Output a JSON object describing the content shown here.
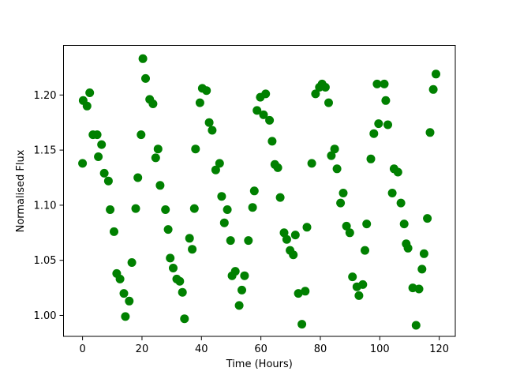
{
  "figure": {
    "background": "#ffffff",
    "border_color": "#000000",
    "text_color": "#000000"
  },
  "chart_data": {
    "type": "scatter",
    "title": "",
    "xlabel": "Time (Hours)",
    "ylabel": "Normalised Flux",
    "xlim": [
      -6.4,
      125.4
    ],
    "ylim": [
      0.981,
      1.245
    ],
    "grid": false,
    "legend": false,
    "xticks": {
      "values": [
        0,
        20,
        40,
        60,
        80,
        100,
        120
      ],
      "labels": [
        "0",
        "20",
        "40",
        "60",
        "80",
        "100",
        "120"
      ]
    },
    "yticks": {
      "values": [
        1.0,
        1.05,
        1.1,
        1.15,
        1.2
      ],
      "labels": [
        "1.00",
        "1.05",
        "1.10",
        "1.15",
        "1.20"
      ]
    },
    "marker": {
      "shape": "circle",
      "color": "#008000",
      "radius_px": 5.5
    },
    "points": [
      [
        0.0,
        1.138
      ],
      [
        0.2,
        1.195
      ],
      [
        1.5,
        1.19
      ],
      [
        2.4,
        1.202
      ],
      [
        3.5,
        1.164
      ],
      [
        4.9,
        1.164
      ],
      [
        5.3,
        1.144
      ],
      [
        6.4,
        1.155
      ],
      [
        7.3,
        1.129
      ],
      [
        8.7,
        1.122
      ],
      [
        9.3,
        1.096
      ],
      [
        10.6,
        1.076
      ],
      [
        11.5,
        1.038
      ],
      [
        12.6,
        1.033
      ],
      [
        13.9,
        1.02
      ],
      [
        14.4,
        0.999
      ],
      [
        15.7,
        1.013
      ],
      [
        16.6,
        1.048
      ],
      [
        17.9,
        1.097
      ],
      [
        18.6,
        1.125
      ],
      [
        19.7,
        1.164
      ],
      [
        20.3,
        1.233
      ],
      [
        21.2,
        1.215
      ],
      [
        22.6,
        1.196
      ],
      [
        23.7,
        1.192
      ],
      [
        24.6,
        1.143
      ],
      [
        25.4,
        1.151
      ],
      [
        26.1,
        1.118
      ],
      [
        27.9,
        1.096
      ],
      [
        28.8,
        1.078
      ],
      [
        29.5,
        1.052
      ],
      [
        30.5,
        1.043
      ],
      [
        31.7,
        1.033
      ],
      [
        32.7,
        1.031
      ],
      [
        33.6,
        1.021
      ],
      [
        34.3,
        0.997
      ],
      [
        36.0,
        1.07
      ],
      [
        36.9,
        1.06
      ],
      [
        37.6,
        1.097
      ],
      [
        38.0,
        1.151
      ],
      [
        39.5,
        1.193
      ],
      [
        40.3,
        1.206
      ],
      [
        41.7,
        1.204
      ],
      [
        42.6,
        1.175
      ],
      [
        43.6,
        1.168
      ],
      [
        44.8,
        1.132
      ],
      [
        46.1,
        1.138
      ],
      [
        46.8,
        1.108
      ],
      [
        47.7,
        1.084
      ],
      [
        48.7,
        1.096
      ],
      [
        49.8,
        1.068
      ],
      [
        50.3,
        1.036
      ],
      [
        51.4,
        1.04
      ],
      [
        52.7,
        1.009
      ],
      [
        53.6,
        1.023
      ],
      [
        54.5,
        1.036
      ],
      [
        55.8,
        1.068
      ],
      [
        57.2,
        1.098
      ],
      [
        57.8,
        1.113
      ],
      [
        58.7,
        1.186
      ],
      [
        59.8,
        1.198
      ],
      [
        60.9,
        1.182
      ],
      [
        61.6,
        1.201
      ],
      [
        62.9,
        1.177
      ],
      [
        63.8,
        1.158
      ],
      [
        64.7,
        1.137
      ],
      [
        65.7,
        1.134
      ],
      [
        66.5,
        1.107
      ],
      [
        67.8,
        1.075
      ],
      [
        68.7,
        1.069
      ],
      [
        69.8,
        1.059
      ],
      [
        70.9,
        1.055
      ],
      [
        71.6,
        1.073
      ],
      [
        72.6,
        1.02
      ],
      [
        73.8,
        0.992
      ],
      [
        74.9,
        1.022
      ],
      [
        75.5,
        1.08
      ],
      [
        77.1,
        1.138
      ],
      [
        78.4,
        1.201
      ],
      [
        79.7,
        1.207
      ],
      [
        80.6,
        1.21
      ],
      [
        81.7,
        1.207
      ],
      [
        82.8,
        1.193
      ],
      [
        83.7,
        1.145
      ],
      [
        84.8,
        1.151
      ],
      [
        85.6,
        1.133
      ],
      [
        86.8,
        1.102
      ],
      [
        87.7,
        1.111
      ],
      [
        88.8,
        1.081
      ],
      [
        89.9,
        1.075
      ],
      [
        90.8,
        1.035
      ],
      [
        92.3,
        1.026
      ],
      [
        93.0,
        1.018
      ],
      [
        94.3,
        1.028
      ],
      [
        95.0,
        1.059
      ],
      [
        95.6,
        1.083
      ],
      [
        97.0,
        1.142
      ],
      [
        98.0,
        1.165
      ],
      [
        99.1,
        1.21
      ],
      [
        99.6,
        1.174
      ],
      [
        101.5,
        1.21
      ],
      [
        102.0,
        1.195
      ],
      [
        102.7,
        1.173
      ],
      [
        104.2,
        1.111
      ],
      [
        104.8,
        1.133
      ],
      [
        106.1,
        1.13
      ],
      [
        107.1,
        1.102
      ],
      [
        108.2,
        1.083
      ],
      [
        108.9,
        1.065
      ],
      [
        109.5,
        1.061
      ],
      [
        111.1,
        1.025
      ],
      [
        112.2,
        0.991
      ],
      [
        113.2,
        1.024
      ],
      [
        114.2,
        1.042
      ],
      [
        114.9,
        1.056
      ],
      [
        116.0,
        1.088
      ],
      [
        116.9,
        1.166
      ],
      [
        118.0,
        1.205
      ],
      [
        118.9,
        1.219
      ]
    ]
  }
}
